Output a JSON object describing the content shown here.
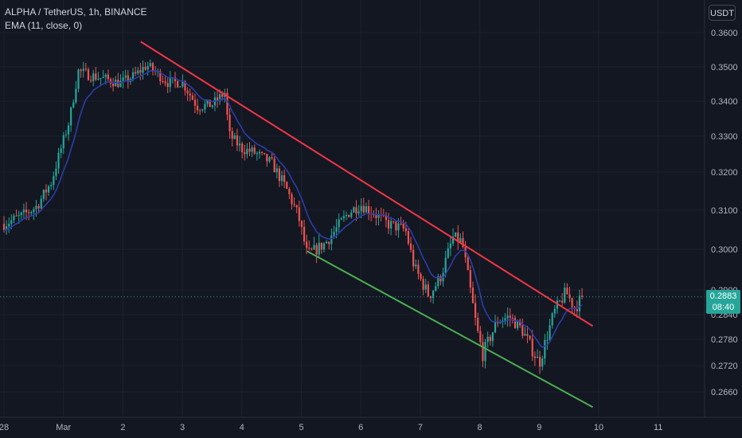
{
  "header": {
    "symbol_line": "ALPHA / TetherUS, 1h, BINANCE",
    "indicator_line": "EMA (11, close, 0)"
  },
  "currency_badge": "USDT",
  "price_tag": {
    "price": "0.2883",
    "countdown": "08:40"
  },
  "colors": {
    "background": "#131722",
    "up": "#26a69a",
    "down": "#ef5350",
    "ema": "#2a3ea8",
    "resistance": "#f23645",
    "support": "#4caf50",
    "grid": "#1e222d",
    "text": "#b2b5be"
  },
  "chart_data": {
    "type": "candlestick",
    "title": "ALPHA / TetherUS, 1h, BINANCE",
    "indicator": "EMA (11, close, 0)",
    "y_ticks": [
      "0.3600",
      "0.3500",
      "0.3400",
      "0.3300",
      "0.3200",
      "0.3100",
      "0.3000",
      "0.2900",
      "0.2840",
      "0.2780",
      "0.2720",
      "0.2660"
    ],
    "y_tick_values": [
      0.36,
      0.35,
      0.34,
      0.33,
      0.32,
      0.31,
      0.3,
      0.29,
      0.284,
      0.278,
      0.272,
      0.266
    ],
    "x_ticks": [
      {
        "label": "28",
        "day": 0
      },
      {
        "label": "Mar",
        "day": 1
      },
      {
        "label": "2",
        "day": 2
      },
      {
        "label": "3",
        "day": 3
      },
      {
        "label": "4",
        "day": 4
      },
      {
        "label": "5",
        "day": 5
      },
      {
        "label": "6",
        "day": 6
      },
      {
        "label": "7",
        "day": 7
      },
      {
        "label": "8",
        "day": 8
      },
      {
        "label": "9",
        "day": 9
      },
      {
        "label": "10",
        "day": 10
      },
      {
        "label": "11",
        "day": 11
      }
    ],
    "last_price": 0.2883,
    "path_day": [
      0,
      0.3,
      0.55,
      0.8,
      1.1,
      1.25,
      1.45,
      1.7,
      1.95,
      2.2,
      2.4,
      2.55,
      2.75,
      3.0,
      3.25,
      3.5,
      3.72,
      3.78,
      4.0,
      4.2,
      4.5,
      4.75,
      4.95,
      5.1,
      5.4,
      5.8,
      6.0,
      6.2,
      6.45,
      6.75,
      6.9,
      7.15,
      7.35,
      7.55,
      7.7,
      7.8,
      7.95,
      8.05,
      8.3,
      8.5,
      8.7,
      8.85,
      9.0,
      9.05,
      9.25,
      9.45,
      9.6,
      9.72
    ],
    "path_price": [
      0.3065,
      0.3085,
      0.311,
      0.3175,
      0.3345,
      0.3488,
      0.3475,
      0.3465,
      0.3452,
      0.3475,
      0.3505,
      0.3485,
      0.3455,
      0.3455,
      0.3385,
      0.339,
      0.3425,
      0.3305,
      0.3265,
      0.3255,
      0.3225,
      0.3155,
      0.3085,
      0.2985,
      0.3015,
      0.3095,
      0.3115,
      0.3095,
      0.3065,
      0.305,
      0.2955,
      0.2885,
      0.2935,
      0.303,
      0.302,
      0.2935,
      0.2805,
      0.2745,
      0.2825,
      0.2835,
      0.2805,
      0.2765,
      0.2725,
      0.2748,
      0.2845,
      0.2895,
      0.2855,
      0.2883
    ],
    "trendlines": [
      {
        "name": "resistance",
        "color": "#f23645",
        "from": {
          "day": 2.3,
          "price": 0.35735
        },
        "to": {
          "day": 9.9,
          "price": 0.2812
        }
      },
      {
        "name": "support",
        "color": "#4caf50",
        "from": {
          "day": 5.1,
          "price": 0.2995
        },
        "to": {
          "day": 9.9,
          "price": 0.2625
        }
      }
    ]
  }
}
